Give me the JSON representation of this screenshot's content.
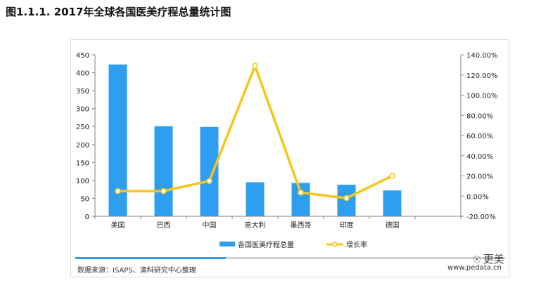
{
  "title": "图1.1.1. 2017年全球各国医美疗程总量统计图",
  "source": "数据来源：ISAPS、清科研究中心整理",
  "site": "www.pedata.cn",
  "watermark": "更美",
  "watermark_icon": "wechat-icon",
  "chart_data": {
    "type": "bar",
    "categories": [
      "美国",
      "巴西",
      "中国",
      "意大利",
      "墨西哥",
      "印度",
      "德国"
    ],
    "series": [
      {
        "name": "各国医美疗程总量",
        "type": "bar",
        "axis": "left",
        "color": "#2e9ff0",
        "values": [
          423,
          251,
          249,
          95,
          93,
          88,
          72
        ]
      },
      {
        "name": "增长率",
        "type": "line",
        "axis": "right",
        "color": "#f5c518",
        "values": [
          5,
          5,
          15,
          129,
          3.5,
          -2,
          20
        ]
      }
    ],
    "left_axis": {
      "min": 0,
      "max": 450,
      "step": 50,
      "ticks": [
        "0",
        "50",
        "100",
        "150",
        "200",
        "250",
        "300",
        "350",
        "400",
        "450"
      ]
    },
    "right_axis": {
      "min": -20,
      "max": 140,
      "step": 20,
      "ticks": [
        "-20.00%",
        "0.00%",
        "20.00%",
        "40.00%",
        "60.00%",
        "80.00%",
        "100.00%",
        "120.00%",
        "140.00%"
      ]
    },
    "grid": false,
    "legend_position": "bottom",
    "progress_bar": {
      "fill_fraction": 0.35,
      "fill_color": "#2e9ff0",
      "track_color": "#cfcfcf"
    }
  }
}
